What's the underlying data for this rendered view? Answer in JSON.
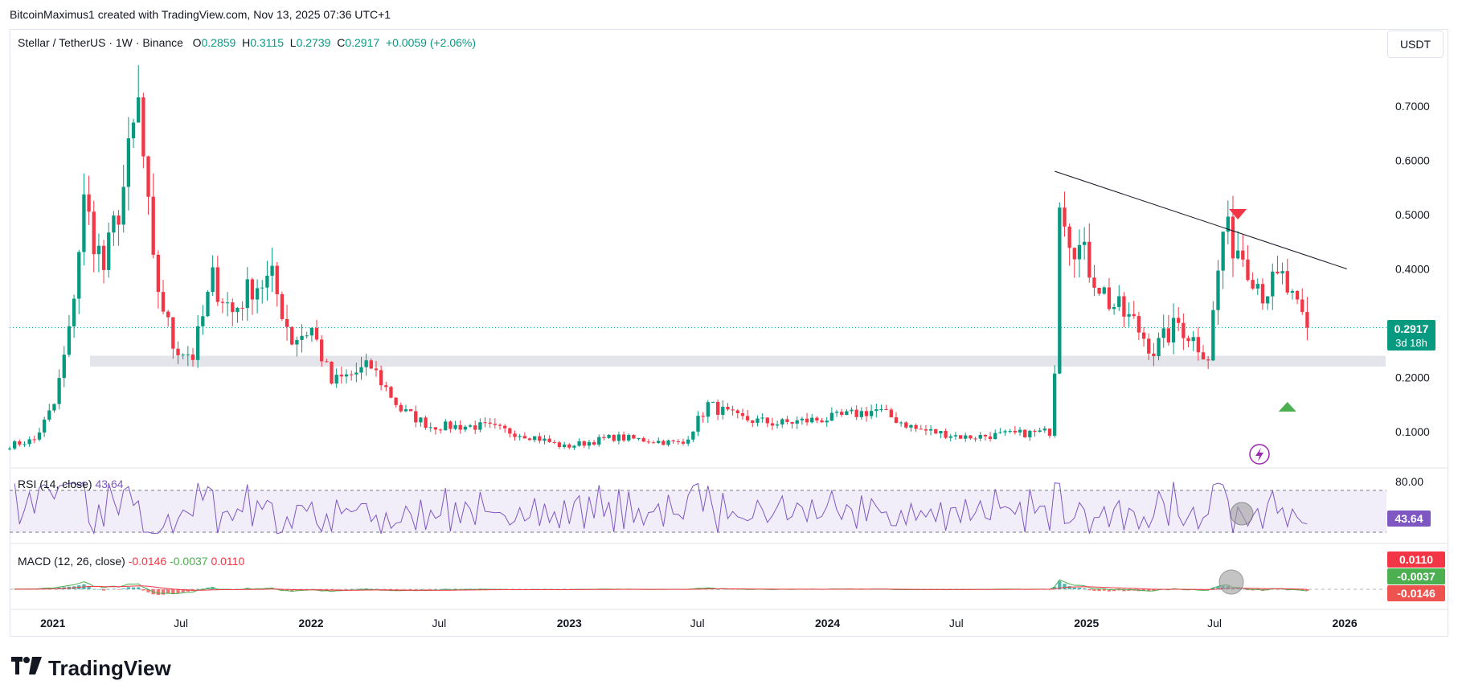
{
  "credit": "BitcoinMaximus1 created with TradingView.com, Nov 13, 2025 07:36 UTC+1",
  "legend": {
    "symbol": "Stellar / TetherUS · 1W · Binance",
    "open_label": "O",
    "open": "0.2859",
    "high_label": "H",
    "high": "0.3115",
    "low_label": "L",
    "low": "0.2739",
    "close_label": "C",
    "close": "0.2917",
    "change": "+0.0059 (+2.06%)"
  },
  "currency_button": "USDT",
  "price_badge": {
    "price": "0.2917",
    "countdown": "3d 18h"
  },
  "rsi": {
    "title": "RSI (14, close)",
    "value": "43.64",
    "upper_label": "80.00",
    "badge": "43.64"
  },
  "macd": {
    "title": "MACD (12, 26, close)",
    "v1": "-0.0146",
    "v2": "-0.0037",
    "v3": "0.0110",
    "badge_red": "0.0110",
    "badge_green": "-0.0037",
    "badge_hist": "-0.0146"
  },
  "brand": "TradingView",
  "colors": {
    "up": "#089981",
    "down": "#f23645",
    "rsi": "#7e57c2",
    "trendline": "#131722",
    "support_zone": "#d1d4dc"
  },
  "chart_data": {
    "type": "candlestick",
    "y_ticks": [
      "0.7000",
      "0.6000",
      "0.5000",
      "0.4000",
      "0.2000",
      "0.1000"
    ],
    "x_ticks": [
      "2021",
      "Jul",
      "2022",
      "Jul",
      "2023",
      "Jul",
      "2024",
      "Jul",
      "2025",
      "Jul",
      "2026"
    ],
    "price_range": [
      0.05,
      0.8
    ],
    "anchors": [
      {
        "date": "2020-11-01",
        "p": 0.075
      },
      {
        "date": "2020-12-06",
        "p": 0.085
      },
      {
        "date": "2021-01-03",
        "p": 0.15
      },
      {
        "date": "2021-01-24",
        "p": 0.28
      },
      {
        "date": "2021-02-14",
        "p": 0.52
      },
      {
        "date": "2021-03-14",
        "p": 0.4
      },
      {
        "date": "2021-04-11",
        "p": 0.55
      },
      {
        "date": "2021-05-02",
        "p": 0.7
      },
      {
        "date": "2021-05-23",
        "p": 0.4
      },
      {
        "date": "2021-06-20",
        "p": 0.26
      },
      {
        "date": "2021-07-18",
        "p": 0.24
      },
      {
        "date": "2021-08-15",
        "p": 0.38
      },
      {
        "date": "2021-09-12",
        "p": 0.32
      },
      {
        "date": "2021-10-10",
        "p": 0.37
      },
      {
        "date": "2021-11-07",
        "p": 0.38
      },
      {
        "date": "2021-12-05",
        "p": 0.27
      },
      {
        "date": "2022-01-02",
        "p": 0.29
      },
      {
        "date": "2022-01-30",
        "p": 0.19
      },
      {
        "date": "2022-03-27",
        "p": 0.22
      },
      {
        "date": "2022-05-08",
        "p": 0.14
      },
      {
        "date": "2022-06-19",
        "p": 0.11
      },
      {
        "date": "2022-09-04",
        "p": 0.11
      },
      {
        "date": "2022-11-13",
        "p": 0.09
      },
      {
        "date": "2022-12-25",
        "p": 0.072
      },
      {
        "date": "2023-03-05",
        "p": 0.09
      },
      {
        "date": "2023-06-11",
        "p": 0.078
      },
      {
        "date": "2023-07-16",
        "p": 0.15
      },
      {
        "date": "2023-08-27",
        "p": 0.125
      },
      {
        "date": "2023-10-22",
        "p": 0.115
      },
      {
        "date": "2024-01-07",
        "p": 0.125
      },
      {
        "date": "2024-03-10",
        "p": 0.14
      },
      {
        "date": "2024-05-05",
        "p": 0.105
      },
      {
        "date": "2024-07-14",
        "p": 0.09
      },
      {
        "date": "2024-11-10",
        "p": 0.1
      },
      {
        "date": "2024-11-17",
        "p": 0.22
      },
      {
        "date": "2024-11-24",
        "p": 0.55
      },
      {
        "date": "2024-12-08",
        "p": 0.47
      },
      {
        "date": "2024-12-29",
        "p": 0.42
      },
      {
        "date": "2025-02-02",
        "p": 0.34
      },
      {
        "date": "2025-03-09",
        "p": 0.3
      },
      {
        "date": "2025-04-06",
        "p": 0.25
      },
      {
        "date": "2025-05-11",
        "p": 0.3
      },
      {
        "date": "2025-06-22",
        "p": 0.24
      },
      {
        "date": "2025-07-13",
        "p": 0.47
      },
      {
        "date": "2025-08-10",
        "p": 0.43
      },
      {
        "date": "2025-09-07",
        "p": 0.36
      },
      {
        "date": "2025-10-05",
        "p": 0.38
      },
      {
        "date": "2025-10-26",
        "p": 0.32
      },
      {
        "date": "2025-11-09",
        "p": 0.2917
      }
    ],
    "trendline": [
      {
        "date": "2024-11-17",
        "p": 0.58
      },
      {
        "date": "2026-01-04",
        "p": 0.4
      }
    ],
    "support_zone": [
      0.22,
      0.24
    ],
    "last_price": 0.2917
  }
}
